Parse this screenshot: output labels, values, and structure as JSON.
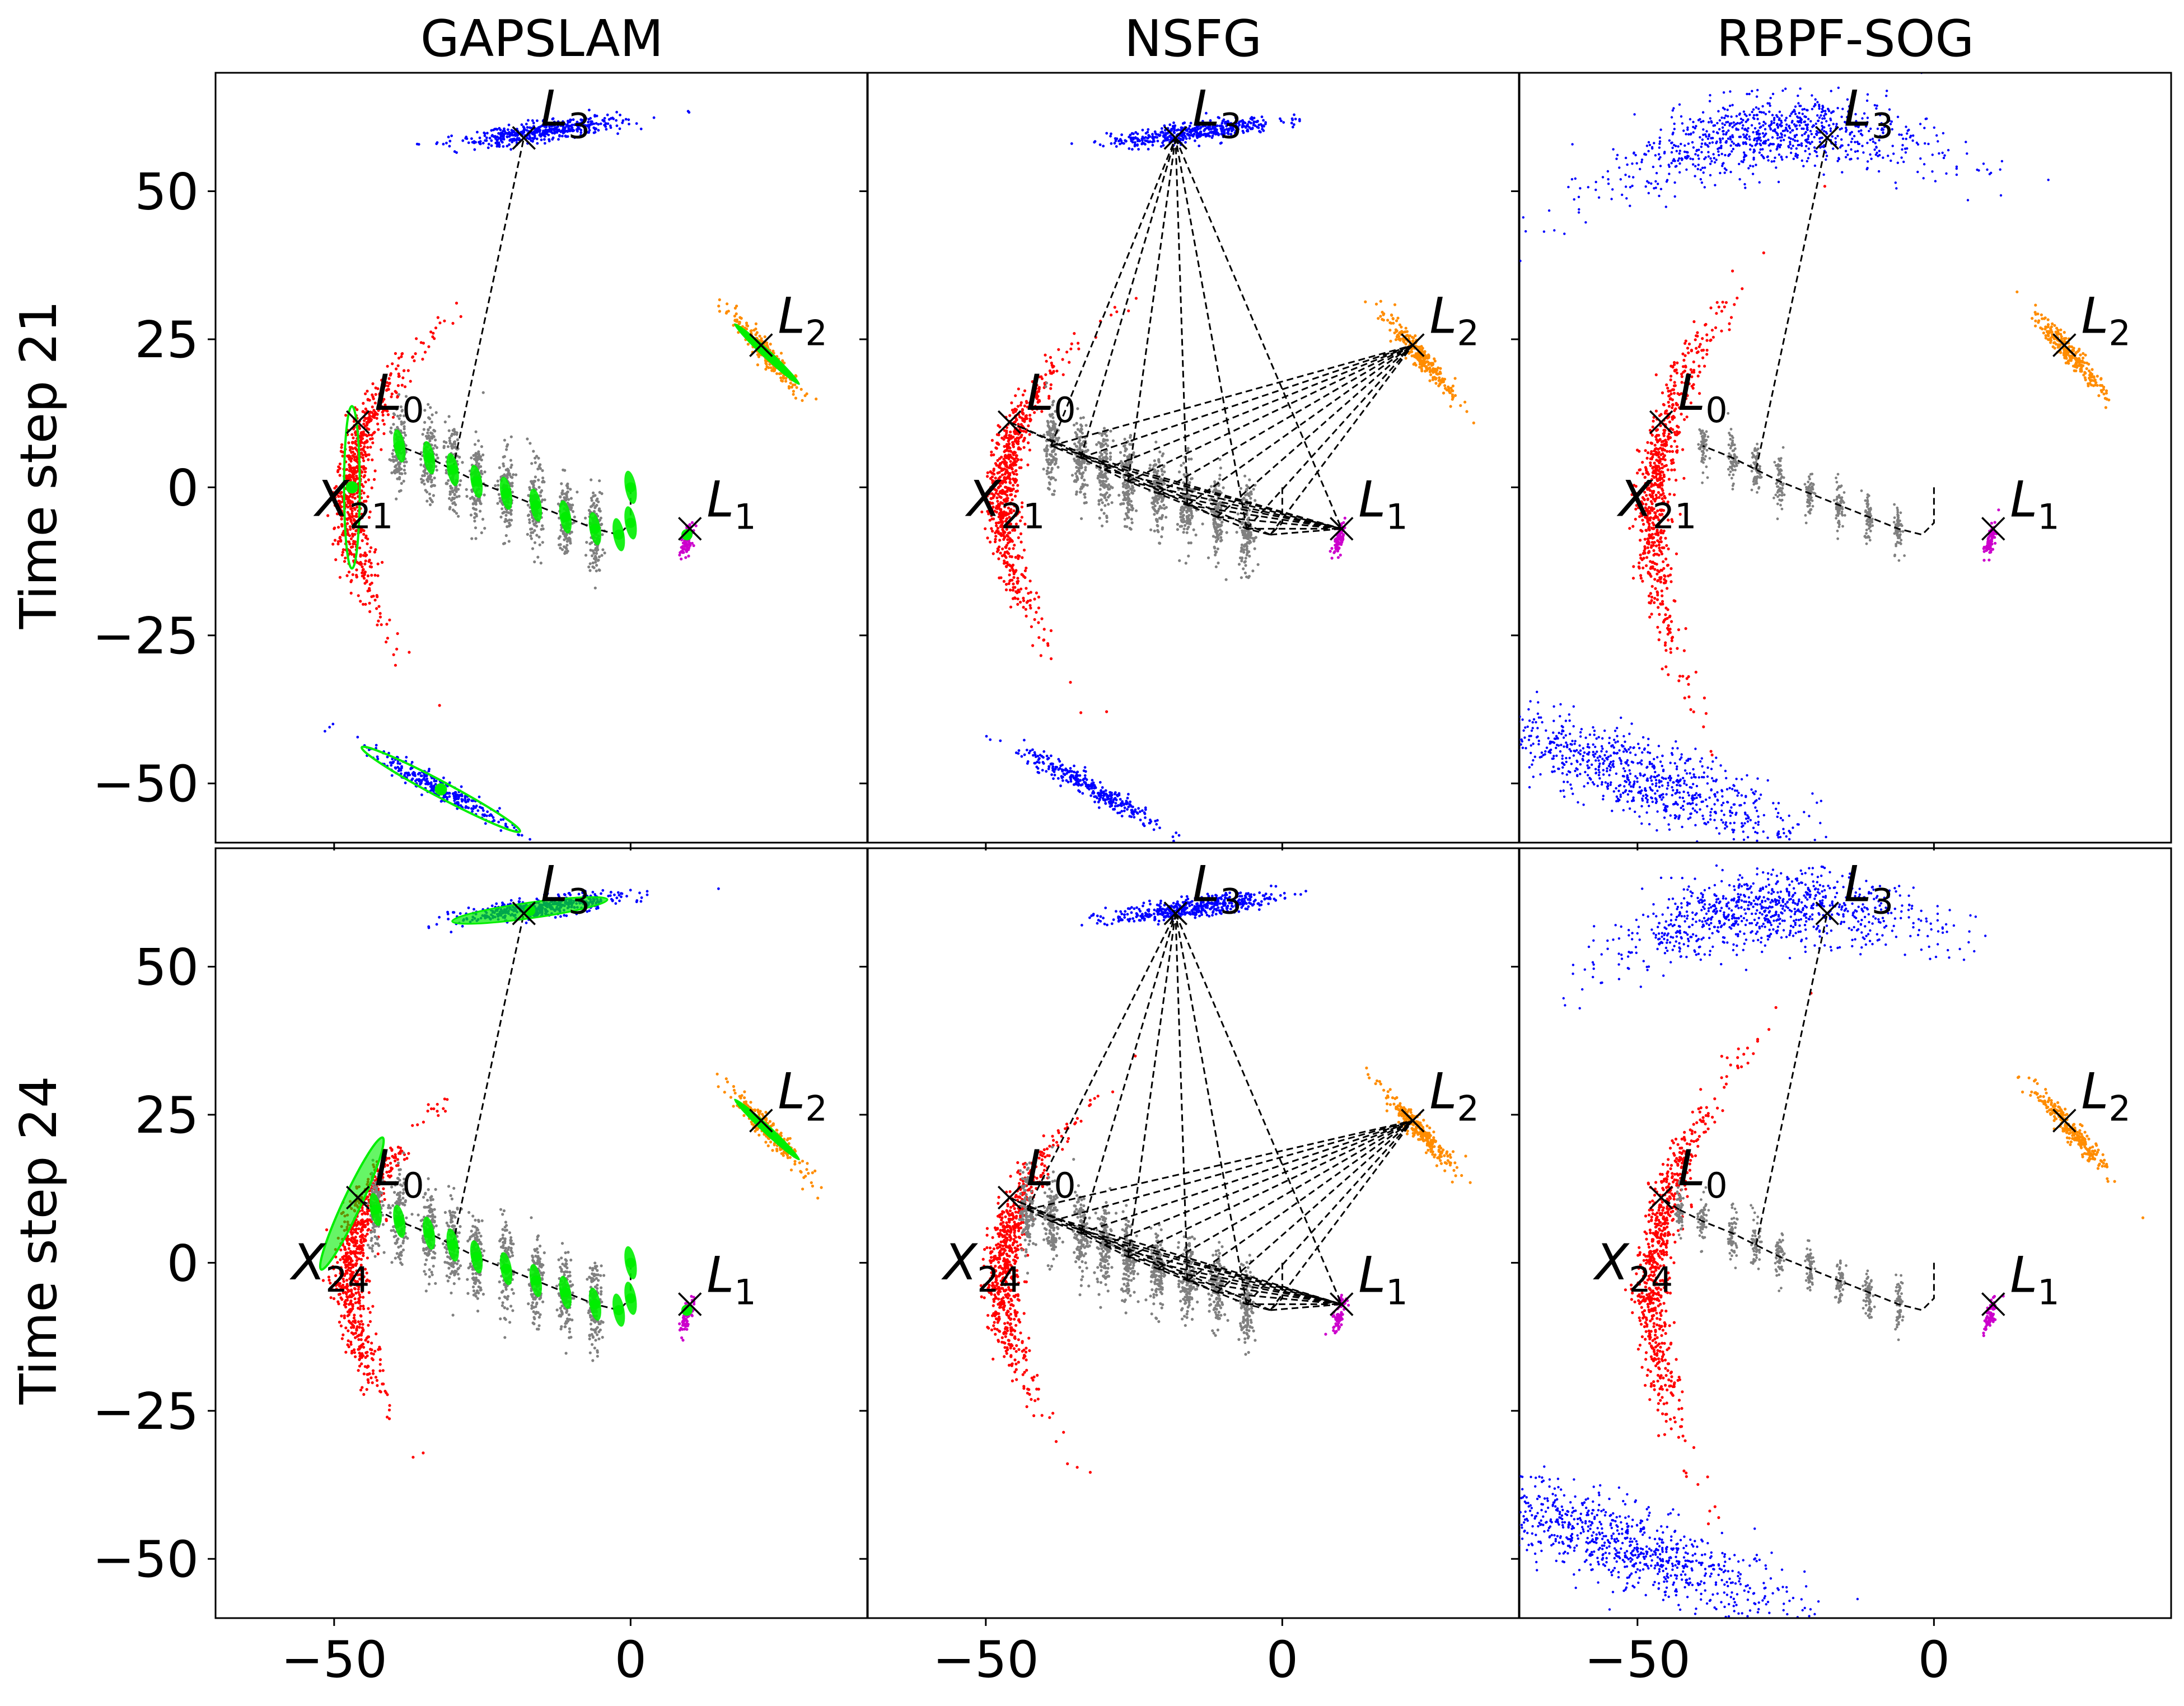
{
  "figure": {
    "column_titles": [
      "GAPSLAM",
      "NSFG",
      "RBPF-SOG"
    ],
    "row_labels": [
      "Time step 21",
      "Time step 24"
    ]
  },
  "chart_data": {
    "type": "scatter",
    "layout": "2x3 grid with shared axes",
    "xlim": [
      -70,
      40
    ],
    "ylim": [
      -60,
      70
    ],
    "x_ticks": [
      -50,
      0
    ],
    "y_ticks": [
      50,
      25,
      0,
      -25,
      -50
    ],
    "x_tick_labels": [
      "−50",
      "0"
    ],
    "y_tick_labels": [
      "50",
      "25",
      "0",
      "−25",
      "−50"
    ],
    "colors": {
      "L0": "#ff0000",
      "L1": "#cc00cc",
      "L2": "#ff8c00",
      "L3": "#0000ff",
      "pose_samples": "#808080",
      "gapslam_gaussian": "#00ee00",
      "measurement_line": "#000000"
    },
    "landmarks": [
      {
        "name": "L",
        "sub": "0",
        "x": -46,
        "y": 11
      },
      {
        "name": "L",
        "sub": "1",
        "x": 10,
        "y": -7
      },
      {
        "name": "L",
        "sub": "2",
        "x": 22,
        "y": 24
      },
      {
        "name": "L",
        "sub": "3",
        "x": -18,
        "y": 59
      }
    ],
    "ghost_L3_mode": {
      "x": -32,
      "y": -51
    },
    "trajectory": [
      {
        "x": 0,
        "y": 0
      },
      {
        "x": 0,
        "y": -6
      },
      {
        "x": -2,
        "y": -8
      },
      {
        "x": -6,
        "y": -7
      },
      {
        "x": -11,
        "y": -5
      },
      {
        "x": -16,
        "y": -3
      },
      {
        "x": -21,
        "y": -1
      },
      {
        "x": -26,
        "y": 1
      },
      {
        "x": -30,
        "y": 3
      },
      {
        "x": -34,
        "y": 5
      },
      {
        "x": -39,
        "y": 7
      },
      {
        "x": -43,
        "y": 9
      }
    ],
    "panels": [
      {
        "method": "GAPSLAM",
        "timestep": 21,
        "pose_label": {
          "base": "X",
          "sub": "21"
        }
      },
      {
        "method": "NSFG",
        "timestep": 21,
        "pose_label": {
          "base": "X",
          "sub": "21"
        }
      },
      {
        "method": "RBPF-SOG",
        "timestep": 21,
        "pose_label": {
          "base": "X",
          "sub": "21"
        }
      },
      {
        "method": "GAPSLAM",
        "timestep": 24,
        "pose_label": {
          "base": "X",
          "sub": "24"
        }
      },
      {
        "method": "NSFG",
        "timestep": 24,
        "pose_label": {
          "base": "X",
          "sub": "24"
        }
      },
      {
        "method": "RBPF-SOG",
        "timestep": 24,
        "pose_label": {
          "base": "X",
          "sub": "24"
        }
      }
    ]
  }
}
